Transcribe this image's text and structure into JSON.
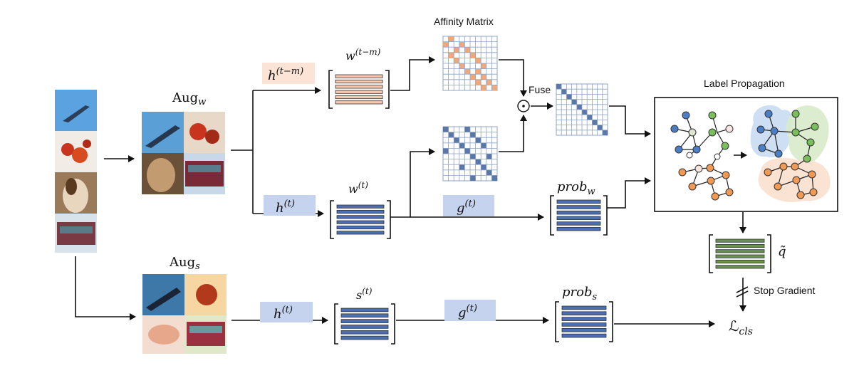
{
  "labels": {
    "affinity_title": "Affinity Matrix",
    "label_propagation_title": "Label Propagation",
    "fuse": "Fuse",
    "stop_gradient": "Stop Gradient"
  },
  "aug": {
    "weak": {
      "base": "Aug",
      "sub": "w"
    },
    "strong": {
      "base": "Aug",
      "sub": "s"
    }
  },
  "heads": {
    "h_past": {
      "base": "h",
      "sup": "(t−m)"
    },
    "h_weak": {
      "base": "h",
      "sup": "(t)"
    },
    "h_strong": {
      "base": "h",
      "sup": "(t)"
    },
    "g_weak": {
      "base": "g",
      "sup": "(t)"
    },
    "g_strong": {
      "base": "g",
      "sup": "(t)"
    }
  },
  "features": {
    "w_past": {
      "base": "w",
      "sup": "(t−m)"
    },
    "w_now": {
      "base": "w",
      "sup": "(t)"
    },
    "s_now": {
      "base": "s",
      "sup": "(t)"
    },
    "prob_w": {
      "base": "prob",
      "sub": "w"
    },
    "prob_s": {
      "base": "prob",
      "sub": "s"
    },
    "q_tilde": "q̃",
    "loss": {
      "base": "ℒ",
      "sub": "cls"
    }
  },
  "fuse_symbol": "⊙",
  "colors": {
    "peach": "#f5c7ad",
    "blue_bar": "#4a6fb5",
    "green_bar": "#6a9150",
    "head_fill": "#c5d3ee",
    "head_fill_past": "#fbe3d5",
    "grid_line": "#8ea3c5",
    "matrix_orange": "#f0a87a",
    "matrix_blue": "#5a77a8",
    "node_blue": "#4a7fc8",
    "node_green": "#79c05c",
    "node_orange": "#f09a55"
  }
}
